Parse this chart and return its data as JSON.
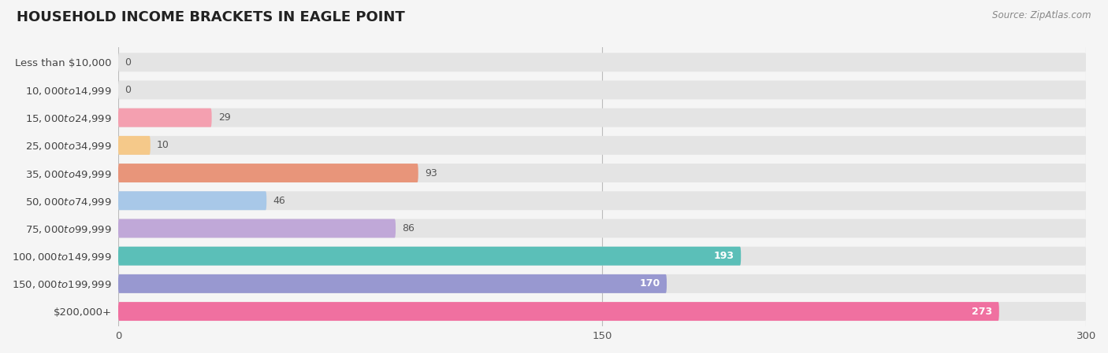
{
  "title": "HOUSEHOLD INCOME BRACKETS IN EAGLE POINT",
  "source": "Source: ZipAtlas.com",
  "categories": [
    "Less than $10,000",
    "$10,000 to $14,999",
    "$15,000 to $24,999",
    "$25,000 to $34,999",
    "$35,000 to $49,999",
    "$50,000 to $74,999",
    "$75,000 to $99,999",
    "$100,000 to $149,999",
    "$150,000 to $199,999",
    "$200,000+"
  ],
  "values": [
    0,
    0,
    29,
    10,
    93,
    46,
    86,
    193,
    170,
    273
  ],
  "bar_colors": [
    "#6dcece",
    "#a8a8d8",
    "#f4a0b0",
    "#f5c98a",
    "#e8957a",
    "#a8c8e8",
    "#c0a8d8",
    "#5bbfb8",
    "#9898d0",
    "#f070a0"
  ],
  "xlim": [
    0,
    300
  ],
  "xticks": [
    0,
    150,
    300
  ],
  "background_color": "#f5f5f5",
  "bar_bg_color": "#e4e4e4",
  "title_fontsize": 13,
  "label_fontsize": 9.5,
  "value_fontsize": 9,
  "bar_height": 0.68,
  "bar_gap": 1.0
}
